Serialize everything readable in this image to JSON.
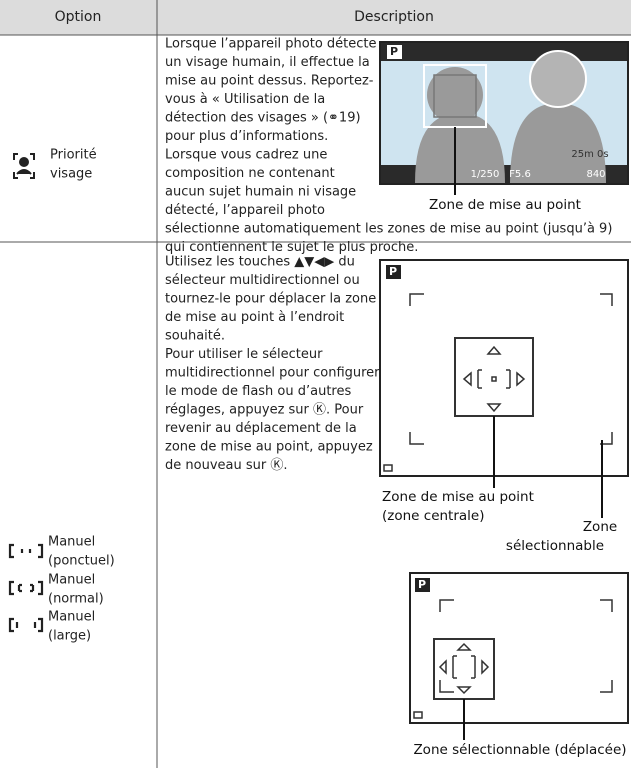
{
  "header": {
    "option": "Option",
    "description": "Description"
  },
  "rows": [
    {
      "options": [
        {
          "label": [
            "Priorité",
            "visage"
          ]
        }
      ],
      "description": [
        "Lorsque l’appareil photo détecte",
        "un visage humain, il effectue la",
        "mise au point dessus. Reportez-",
        "vous à « Utilisation de la",
        "détection des visages » (⚭19)",
        "pour plus d’informations.",
        "Lorsque vous cadrez une",
        "composition ne contenant",
        "aucun sujet humain ni visage",
        "détecté, l’appareil photo",
        "sélectionne automatiquement les zones de mise au point (jusqu’à 9)",
        "qui contiennent le sujet le plus proche."
      ],
      "figures": [
        {
          "mode": "P",
          "osd": [
            "1/250",
            "F5.6",
            "25m 0s",
            "840"
          ],
          "captions": [
            "Zone de mise au point"
          ]
        }
      ]
    },
    {
      "options": [
        {
          "label": [
            "Manuel",
            "(ponctuel)"
          ]
        },
        {
          "label": [
            "Manuel",
            "(normal)"
          ]
        },
        {
          "label": [
            "Manuel",
            "(large)"
          ]
        }
      ],
      "description": [
        "Utilisez les touches ▲▼◀▶ du",
        "sélecteur multidirectionnel ou",
        "tournez-le pour déplacer la zone",
        "de mise au point à l’endroit",
        "souhaité.",
        "Pour utiliser le sélecteur",
        "multidirectionnel pour configurer",
        "le mode de flash ou d’autres",
        "réglages, appuyez sur Ⓚ. Pour",
        "revenir au déplacement de la",
        "zone de mise au point, appuyez",
        "de nouveau sur Ⓚ."
      ],
      "figures": [
        {
          "mode": "P",
          "captions": [
            "Zone de mise au point",
            "(zone centrale)",
            "Zone",
            "sélectionnable"
          ]
        },
        {
          "mode": "P",
          "captions": [
            "Zone sélectionnable (déplacée)"
          ]
        }
      ]
    }
  ]
}
